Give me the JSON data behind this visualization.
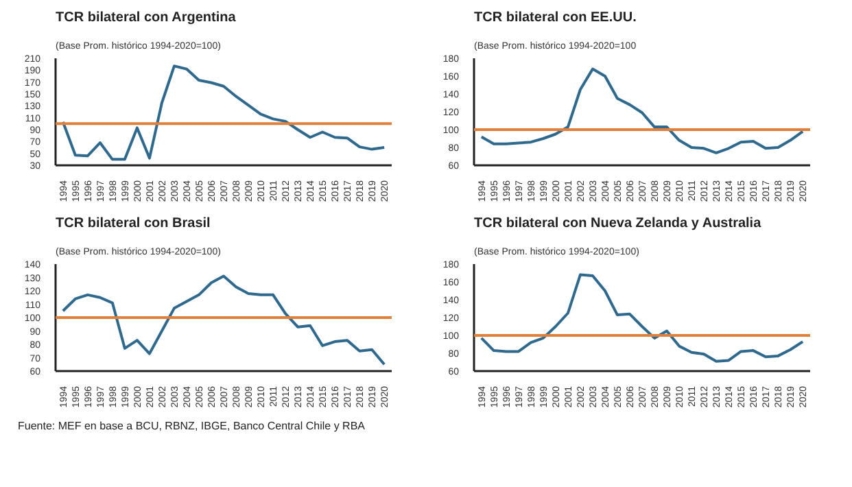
{
  "chart_data": [
    {
      "type": "line",
      "title": "TCR bilateral con Argentina",
      "subtitle": "(Base Prom. histórico 1994-2020=100)",
      "categories": [
        "1994",
        "1995",
        "1996",
        "1997",
        "1998",
        "1999",
        "2000",
        "2001",
        "2002",
        "2003",
        "2004",
        "2005",
        "2006",
        "2007",
        "2008",
        "2009",
        "2010",
        "2011",
        "2012",
        "2013",
        "2014",
        "2015",
        "2016",
        "2017",
        "2018",
        "2019",
        "2020"
      ],
      "series": [
        {
          "color": "#2f6a8e",
          "values": [
            103,
            47,
            46,
            68,
            40,
            40,
            93,
            42,
            135,
            197,
            192,
            173,
            169,
            163,
            146,
            131,
            116,
            108,
            104,
            90,
            77,
            86,
            77,
            76,
            61,
            57,
            60
          ]
        }
      ],
      "ylim": [
        30,
        210
      ],
      "yticks": [
        30,
        50,
        70,
        90,
        110,
        130,
        150,
        170,
        190,
        210
      ],
      "ref_lines": [
        {
          "axis": "y",
          "value": 100,
          "color": "#e0803a"
        }
      ]
    },
    {
      "type": "line",
      "title": "TCR bilateral con EE.UU.",
      "subtitle": "(Base Prom. histórico 1994-2020=100",
      "categories": [
        "1994",
        "1995",
        "1996",
        "1997",
        "1998",
        "1999",
        "2000",
        "2001",
        "2002",
        "2003",
        "2004",
        "2005",
        "2006",
        "2007",
        "2008",
        "2009",
        "2010",
        "2011",
        "2012",
        "2013",
        "2014",
        "2015",
        "2016",
        "2017",
        "2018",
        "2019",
        "2020"
      ],
      "series": [
        {
          "color": "#2f6a8e",
          "values": [
            92,
            84,
            84,
            85,
            86,
            90,
            95,
            103,
            145,
            168,
            160,
            135,
            128,
            119,
            103,
            103,
            88,
            80,
            79,
            74,
            79,
            86,
            87,
            79,
            80,
            88,
            98
          ]
        }
      ],
      "ylim": [
        60,
        180
      ],
      "yticks": [
        60,
        80,
        100,
        120,
        140,
        160,
        180
      ],
      "ref_lines": [
        {
          "axis": "y",
          "value": 100,
          "color": "#e0803a"
        }
      ]
    },
    {
      "type": "line",
      "title": "TCR bilateral con Brasil",
      "subtitle": "(Base Prom. histórico 1994-2020=100)",
      "categories": [
        "1994",
        "1995",
        "1996",
        "1997",
        "1998",
        "1999",
        "2000",
        "2001",
        "2002",
        "2003",
        "2004",
        "2005",
        "2006",
        "2007",
        "2008",
        "2009",
        "2010",
        "2011",
        "2012",
        "2013",
        "2014",
        "2015",
        "2016",
        "2017",
        "2018",
        "2019",
        "2020"
      ],
      "series": [
        {
          "color": "#2f6a8e",
          "values": [
            105,
            114,
            117,
            115,
            111,
            77,
            83,
            73,
            90,
            107,
            112,
            117,
            126,
            131,
            123,
            118,
            117,
            117,
            103,
            93,
            94,
            79,
            82,
            83,
            75,
            76,
            65
          ]
        }
      ],
      "ylim": [
        60,
        140
      ],
      "yticks": [
        60,
        70,
        80,
        90,
        100,
        110,
        120,
        130,
        140
      ],
      "ref_lines": [
        {
          "axis": "y",
          "value": 100,
          "color": "#e0803a"
        }
      ],
      "annotations": [
        "Fuente: MEF en base a BCU, RBNZ, IBGE, Banco Central Chile y RBA"
      ]
    },
    {
      "type": "line",
      "title": "TCR bilateral con Nueva Zelanda y Australia",
      "subtitle": "(Base Prom. histórico 1994-2020=100)",
      "categories": [
        "1994",
        "1995",
        "1996",
        "1997",
        "1998",
        "1999",
        "2000",
        "2001",
        "2002",
        "2003",
        "2004",
        "2005",
        "2006",
        "2007",
        "2008",
        "2009",
        "2010",
        "2011",
        "2012",
        "2013",
        "2014",
        "2015",
        "2016",
        "2017",
        "2018",
        "2019",
        "2020"
      ],
      "series": [
        {
          "color": "#2f6a8e",
          "values": [
            97,
            83,
            82,
            82,
            92,
            97,
            110,
            125,
            168,
            167,
            150,
            123,
            124,
            110,
            97,
            105,
            88,
            81,
            79,
            71,
            72,
            82,
            83,
            76,
            77,
            84,
            93
          ]
        }
      ],
      "ylim": [
        60,
        180
      ],
      "yticks": [
        60,
        80,
        100,
        120,
        140,
        160,
        180
      ],
      "ref_lines": [
        {
          "axis": "y",
          "value": 100,
          "color": "#e0803a"
        }
      ]
    }
  ]
}
